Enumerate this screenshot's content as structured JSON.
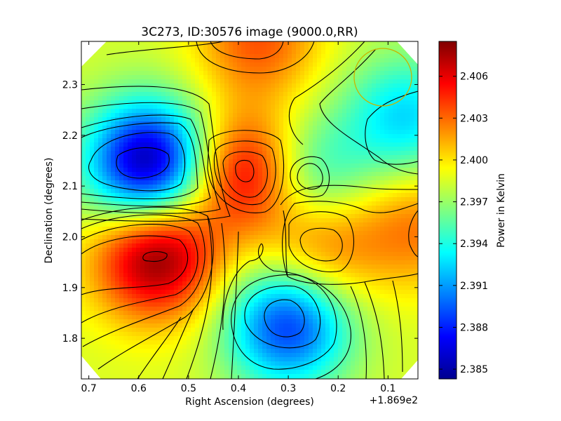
{
  "chart_data": {
    "type": "heatmap",
    "subtype": "contour map",
    "title": "3C273, ID:30576 image (9000.0,RR)",
    "xlabel": "Right Ascension (degrees)",
    "ylabel": "Declination (degrees)",
    "x_offset_label": "+1.869e2",
    "xlim": [
      0.715,
      0.04
    ],
    "ylim": [
      1.72,
      2.385
    ],
    "x_ticks": [
      "0.7",
      "0.6",
      "0.5",
      "0.4",
      "0.3",
      "0.2",
      "0.1"
    ],
    "y_ticks": [
      "2.3",
      "2.2",
      "2.1",
      "2.0",
      "1.9",
      "1.8"
    ],
    "x_tick_values": [
      0.7,
      0.6,
      0.5,
      0.4,
      0.3,
      0.2,
      0.1
    ],
    "y_tick_values": [
      2.3,
      2.2,
      2.1,
      2.0,
      1.9,
      1.8
    ],
    "colorbar": {
      "label": "Power in Kelvin",
      "range": [
        2.3843,
        2.4085
      ],
      "ticks": [
        "2.406",
        "2.403",
        "2.400",
        "2.397",
        "2.394",
        "2.391",
        "2.388",
        "2.385"
      ],
      "tick_values": [
        2.406,
        2.403,
        2.4,
        2.397,
        2.394,
        2.391,
        2.388,
        2.385
      ],
      "colormap": "jet"
    },
    "features": [
      {
        "kind": "minimum",
        "ra": 0.58,
        "dec": 2.145,
        "value": 2.3847
      },
      {
        "kind": "maximum",
        "ra": 0.565,
        "dec": 1.96,
        "value": 2.4085
      },
      {
        "kind": "maximum",
        "ra": 0.38,
        "dec": 2.125,
        "value": 2.4075
      },
      {
        "kind": "maximum",
        "ra": 0.36,
        "dec": 2.39,
        "value": 2.4035
      },
      {
        "kind": "maximum",
        "ra": 0.235,
        "dec": 1.985,
        "value": 2.4035
      },
      {
        "kind": "maximum",
        "ra": 0.04,
        "dec": 2.02,
        "value": 2.4025
      },
      {
        "kind": "minimum",
        "ra": 0.3,
        "dec": 1.825,
        "value": 2.3885
      },
      {
        "kind": "minimum",
        "ra": 0.265,
        "dec": 2.115,
        "value": 2.3925
      },
      {
        "kind": "minimum",
        "ra": 0.065,
        "dec": 2.235,
        "value": 2.3925
      }
    ],
    "beam_circle": {
      "ra": 0.115,
      "dec": 2.32,
      "radius_deg": 0.055,
      "color": "#c8b400"
    }
  }
}
